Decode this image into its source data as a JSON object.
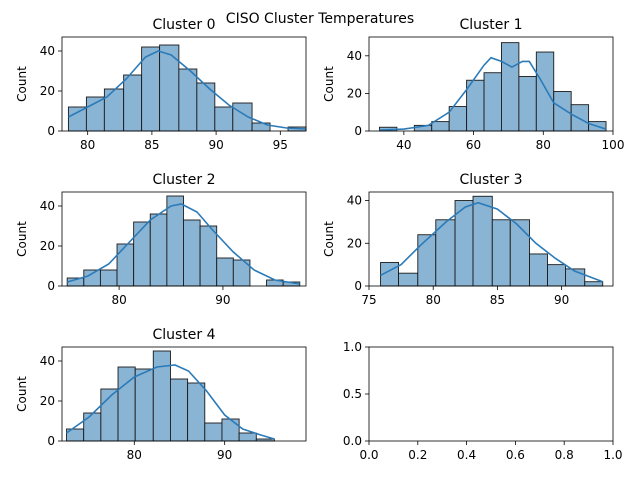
{
  "suptitle": "CISO Cluster Temperatures",
  "chart_data": [
    {
      "type": "bar",
      "title": "Cluster 0",
      "ylabel": "Count",
      "xlim": [
        78,
        97
      ],
      "ylim": [
        0,
        47
      ],
      "xticks": [
        80,
        85,
        90,
        95
      ],
      "yticks": [
        0,
        20,
        40
      ],
      "bins": [
        {
          "x0": 78.5,
          "x1": 79.9,
          "count": 12
        },
        {
          "x0": 79.9,
          "x1": 81.3,
          "count": 17
        },
        {
          "x0": 81.3,
          "x1": 82.8,
          "count": 21
        },
        {
          "x0": 82.8,
          "x1": 84.2,
          "count": 28
        },
        {
          "x0": 84.2,
          "x1": 85.6,
          "count": 42
        },
        {
          "x0": 85.6,
          "x1": 87.1,
          "count": 43
        },
        {
          "x0": 87.1,
          "x1": 88.5,
          "count": 31
        },
        {
          "x0": 88.5,
          "x1": 89.9,
          "count": 24
        },
        {
          "x0": 89.9,
          "x1": 91.3,
          "count": 12
        },
        {
          "x0": 91.3,
          "x1": 92.8,
          "count": 14
        },
        {
          "x0": 92.8,
          "x1": 94.2,
          "count": 4
        },
        {
          "x0": 94.2,
          "x1": 95.6,
          "count": 0
        },
        {
          "x0": 95.6,
          "x1": 97.0,
          "count": 2
        }
      ],
      "kde": [
        [
          78.5,
          7
        ],
        [
          80,
          12
        ],
        [
          81.5,
          17
        ],
        [
          83,
          26
        ],
        [
          84.5,
          37
        ],
        [
          85.5,
          40
        ],
        [
          86.5,
          38
        ],
        [
          88,
          30
        ],
        [
          89.5,
          21
        ],
        [
          91,
          13
        ],
        [
          92.5,
          7
        ],
        [
          94,
          3
        ],
        [
          95.5,
          1.5
        ],
        [
          97,
          1
        ]
      ]
    },
    {
      "type": "bar",
      "title": "Cluster 1",
      "ylabel": "Count",
      "xlim": [
        30,
        100
      ],
      "ylim": [
        0,
        50
      ],
      "xticks": [
        40,
        60,
        80,
        100
      ],
      "yticks": [
        0,
        20,
        40
      ],
      "bins": [
        {
          "x0": 33,
          "x1": 38,
          "count": 2
        },
        {
          "x0": 38,
          "x1": 43,
          "count": 0
        },
        {
          "x0": 43,
          "x1": 48,
          "count": 3
        },
        {
          "x0": 48,
          "x1": 53,
          "count": 5
        },
        {
          "x0": 53,
          "x1": 58,
          "count": 13
        },
        {
          "x0": 58,
          "x1": 63,
          "count": 27
        },
        {
          "x0": 63,
          "x1": 68,
          "count": 31
        },
        {
          "x0": 68,
          "x1": 73,
          "count": 47
        },
        {
          "x0": 73,
          "x1": 78,
          "count": 29
        },
        {
          "x0": 78,
          "x1": 83,
          "count": 42
        },
        {
          "x0": 83,
          "x1": 88,
          "count": 21
        },
        {
          "x0": 88,
          "x1": 93,
          "count": 14
        },
        {
          "x0": 93,
          "x1": 98,
          "count": 5
        }
      ],
      "kde": [
        [
          33,
          0.5
        ],
        [
          40,
          1
        ],
        [
          47,
          3
        ],
        [
          53,
          10
        ],
        [
          58,
          22
        ],
        [
          63,
          35
        ],
        [
          65,
          39
        ],
        [
          68,
          37
        ],
        [
          71,
          34
        ],
        [
          74,
          37
        ],
        [
          76,
          37
        ],
        [
          79,
          28
        ],
        [
          83,
          15
        ],
        [
          88,
          9
        ],
        [
          93,
          4
        ],
        [
          98,
          1
        ]
      ]
    },
    {
      "type": "bar",
      "title": "Cluster 2",
      "ylabel": "Count",
      "xlim": [
        74.5,
        98
      ],
      "ylim": [
        0,
        47
      ],
      "xticks": [
        80,
        90
      ],
      "yticks": [
        0,
        20,
        40
      ],
      "bins": [
        {
          "x0": 75.0,
          "x1": 76.6,
          "count": 4
        },
        {
          "x0": 76.6,
          "x1": 78.2,
          "count": 8
        },
        {
          "x0": 78.2,
          "x1": 79.8,
          "count": 8
        },
        {
          "x0": 79.8,
          "x1": 81.4,
          "count": 21
        },
        {
          "x0": 81.4,
          "x1": 83.0,
          "count": 32
        },
        {
          "x0": 83.0,
          "x1": 84.6,
          "count": 36
        },
        {
          "x0": 84.6,
          "x1": 86.2,
          "count": 45
        },
        {
          "x0": 86.2,
          "x1": 87.8,
          "count": 33
        },
        {
          "x0": 87.8,
          "x1": 89.4,
          "count": 30
        },
        {
          "x0": 89.4,
          "x1": 91.0,
          "count": 14
        },
        {
          "x0": 91.0,
          "x1": 92.6,
          "count": 13
        },
        {
          "x0": 92.6,
          "x1": 94.2,
          "count": 0
        },
        {
          "x0": 94.2,
          "x1": 95.8,
          "count": 3
        },
        {
          "x0": 95.8,
          "x1": 97.4,
          "count": 2
        }
      ],
      "kde": [
        [
          75,
          2
        ],
        [
          77,
          5
        ],
        [
          79,
          11
        ],
        [
          81,
          22
        ],
        [
          83,
          33
        ],
        [
          85,
          40
        ],
        [
          86,
          41
        ],
        [
          87.5,
          37
        ],
        [
          89,
          28
        ],
        [
          91,
          17
        ],
        [
          93,
          8
        ],
        [
          95,
          3
        ],
        [
          97.4,
          1
        ]
      ]
    },
    {
      "type": "bar",
      "title": "Cluster 3",
      "ylabel": "Count",
      "xlim": [
        75,
        94
      ],
      "ylim": [
        0,
        44
      ],
      "xticks": [
        75,
        80,
        85,
        90
      ],
      "yticks": [
        0,
        20,
        40
      ],
      "bins": [
        {
          "x0": 75.9,
          "x1": 77.3,
          "count": 11
        },
        {
          "x0": 77.3,
          "x1": 78.8,
          "count": 6
        },
        {
          "x0": 78.8,
          "x1": 80.2,
          "count": 24
        },
        {
          "x0": 80.2,
          "x1": 81.7,
          "count": 31
        },
        {
          "x0": 81.7,
          "x1": 83.1,
          "count": 40
        },
        {
          "x0": 83.1,
          "x1": 84.6,
          "count": 42
        },
        {
          "x0": 84.6,
          "x1": 86.0,
          "count": 31
        },
        {
          "x0": 86.0,
          "x1": 87.5,
          "count": 31
        },
        {
          "x0": 87.5,
          "x1": 88.9,
          "count": 15
        },
        {
          "x0": 88.9,
          "x1": 90.3,
          "count": 10
        },
        {
          "x0": 90.3,
          "x1": 91.8,
          "count": 8
        },
        {
          "x0": 91.8,
          "x1": 93.2,
          "count": 2
        }
      ],
      "kde": [
        [
          75.9,
          5
        ],
        [
          77.5,
          10
        ],
        [
          79,
          19
        ],
        [
          81,
          30
        ],
        [
          82.5,
          37
        ],
        [
          83.5,
          39
        ],
        [
          85,
          36
        ],
        [
          86.5,
          29
        ],
        [
          88,
          20
        ],
        [
          89.5,
          13
        ],
        [
          91,
          7
        ],
        [
          93.2,
          2
        ]
      ]
    },
    {
      "type": "bar",
      "title": "Cluster 4",
      "ylabel": "Count",
      "xlim": [
        72,
        99
      ],
      "ylim": [
        0,
        47
      ],
      "xticks": [
        80,
        90
      ],
      "yticks": [
        0,
        20,
        40
      ],
      "bins": [
        {
          "x0": 72.5,
          "x1": 74.4,
          "count": 6
        },
        {
          "x0": 74.4,
          "x1": 76.3,
          "count": 14
        },
        {
          "x0": 76.3,
          "x1": 78.2,
          "count": 26
        },
        {
          "x0": 78.2,
          "x1": 80.1,
          "count": 37
        },
        {
          "x0": 80.1,
          "x1": 82.1,
          "count": 36
        },
        {
          "x0": 82.1,
          "x1": 84.0,
          "count": 45
        },
        {
          "x0": 84.0,
          "x1": 85.9,
          "count": 31
        },
        {
          "x0": 85.9,
          "x1": 87.8,
          "count": 29
        },
        {
          "x0": 87.8,
          "x1": 89.7,
          "count": 9
        },
        {
          "x0": 89.7,
          "x1": 91.6,
          "count": 11
        },
        {
          "x0": 91.6,
          "x1": 93.5,
          "count": 4
        },
        {
          "x0": 93.5,
          "x1": 95.5,
          "count": 1
        }
      ],
      "kde": [
        [
          72.5,
          4
        ],
        [
          75,
          12
        ],
        [
          77.5,
          23
        ],
        [
          80,
          32
        ],
        [
          82.5,
          37
        ],
        [
          84.5,
          38
        ],
        [
          86,
          35
        ],
        [
          88,
          25
        ],
        [
          90,
          13
        ],
        [
          92,
          6
        ],
        [
          94,
          3
        ],
        [
          95.5,
          1
        ]
      ]
    },
    {
      "type": "scatter",
      "title": "",
      "ylabel": "",
      "xlim": [
        0,
        1
      ],
      "ylim": [
        0,
        1
      ],
      "xticks": [
        0.0,
        0.2,
        0.4,
        0.6,
        0.8,
        1.0
      ],
      "yticks": [
        0.0,
        0.5,
        1.0
      ],
      "xticklabels": [
        "0.0",
        "0.2",
        "0.4",
        "0.6",
        "0.8",
        "1.0"
      ],
      "yticklabels": [
        "0.0",
        "0.5",
        "1.0"
      ],
      "bins": [],
      "kde": []
    }
  ]
}
